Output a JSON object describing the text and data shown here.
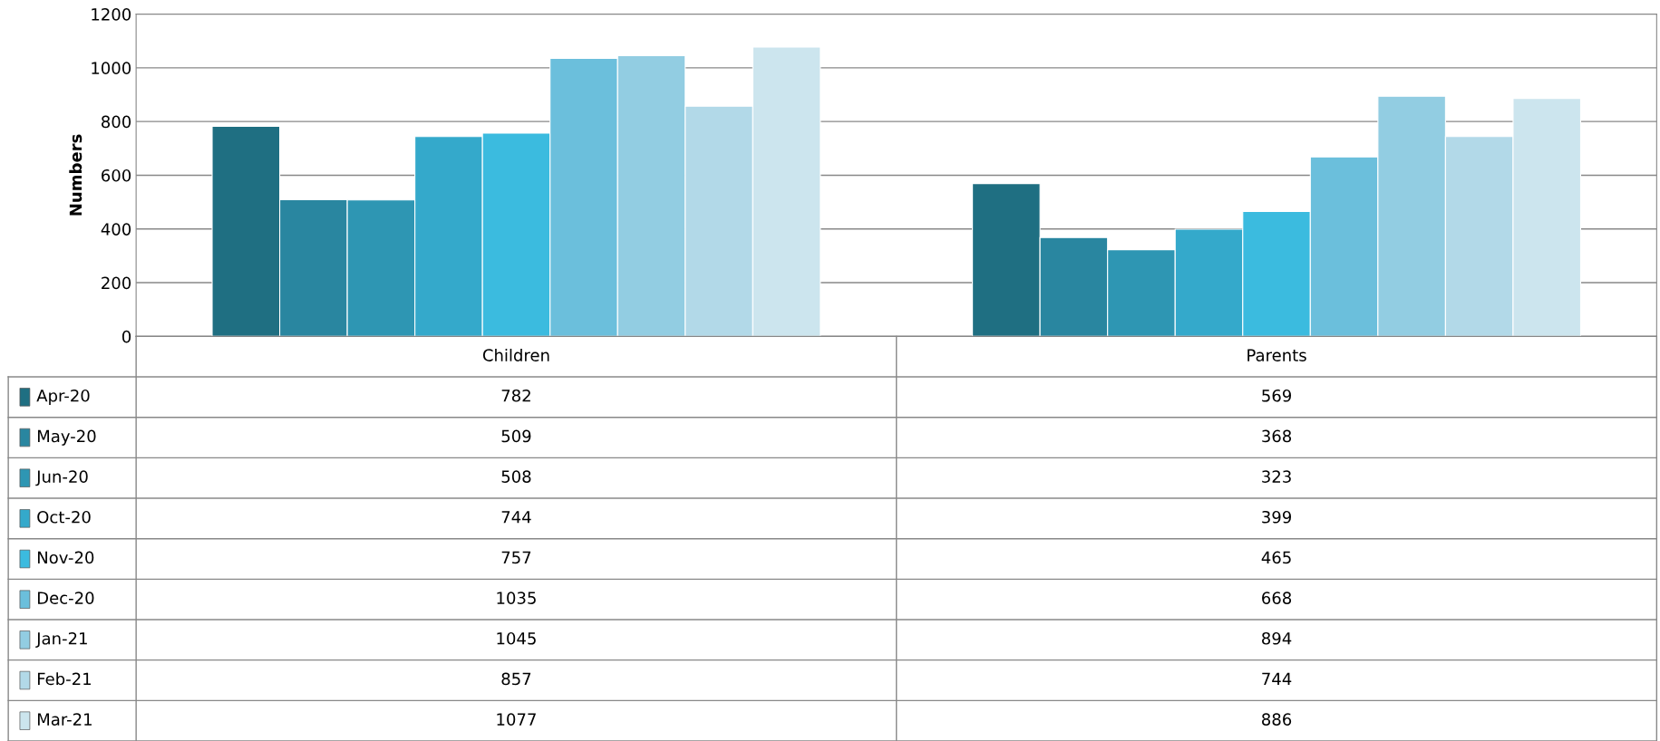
{
  "chart_data": {
    "type": "bar",
    "ylabel": "Numbers",
    "categories": [
      "Children",
      "Parents"
    ],
    "series": [
      {
        "name": "Apr-20",
        "color": "#1f6f82",
        "values": [
          782,
          569
        ]
      },
      {
        "name": "May-20",
        "color": "#2986a0",
        "values": [
          509,
          368
        ]
      },
      {
        "name": "Jun-20",
        "color": "#2e96b3",
        "values": [
          508,
          323
        ]
      },
      {
        "name": "Oct-20",
        "color": "#34a9cb",
        "values": [
          744,
          399
        ]
      },
      {
        "name": "Nov-20",
        "color": "#3bbbdf",
        "values": [
          757,
          465
        ]
      },
      {
        "name": "Dec-20",
        "color": "#6bbfdc",
        "values": [
          1035,
          668
        ]
      },
      {
        "name": "Jan-21",
        "color": "#92cde2",
        "values": [
          1045,
          894
        ]
      },
      {
        "name": "Feb-21",
        "color": "#b2d9e8",
        "values": [
          857,
          744
        ]
      },
      {
        "name": "Mar-21",
        "color": "#cce5ee",
        "values": [
          1077,
          886
        ]
      }
    ],
    "ylim": [
      0,
      1200
    ],
    "yticks": [
      0,
      200,
      400,
      600,
      800,
      1000,
      1200
    ],
    "grid": "y",
    "legend": "left",
    "data_labels": true
  }
}
